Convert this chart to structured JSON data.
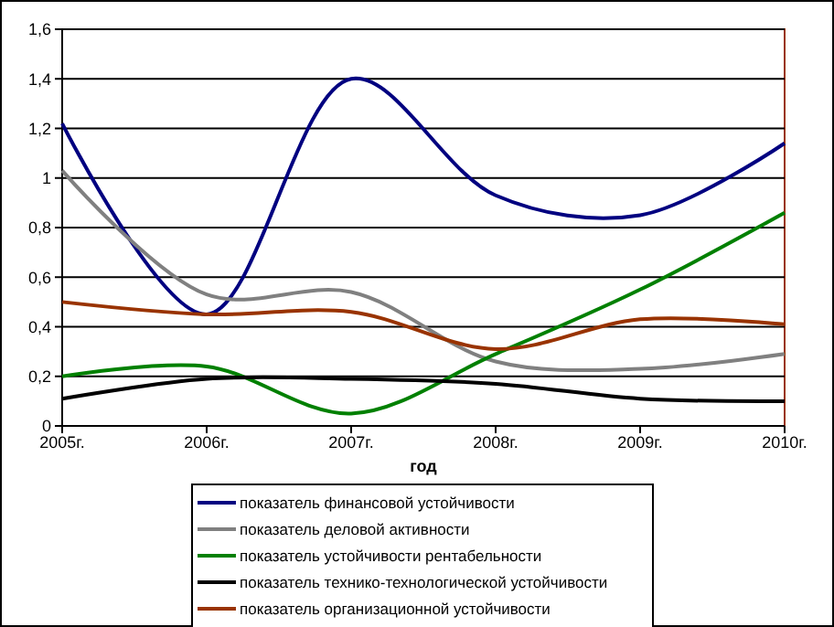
{
  "chart_data": {
    "type": "line",
    "xlabel": "год",
    "categories": [
      "2005г.",
      "2006г.",
      "2007г.",
      "2008г.",
      "2009г.",
      "2010г."
    ],
    "ylim": [
      0,
      1.6
    ],
    "yticks": [
      0,
      {
        "value": 0.2,
        "label": "0,2"
      },
      {
        "value": 0.4,
        "label": "0,4"
      },
      {
        "value": 0.6,
        "label": "0,6"
      },
      {
        "value": 0.8,
        "label": "0,8"
      },
      1,
      {
        "value": 1.2,
        "label": "1,2"
      },
      {
        "value": 1.4,
        "label": "1,4"
      },
      {
        "value": 1.6,
        "label": "1,6"
      }
    ],
    "grid": "y",
    "legend": "bottom",
    "marker": "none",
    "line_style": "solid",
    "series": [
      {
        "name": "показатель финансовой устойчивости",
        "color": "#000080",
        "values": [
          1.22,
          0.45,
          1.4,
          0.93,
          0.85,
          1.14
        ]
      },
      {
        "name": "показатель деловой активности",
        "color": "#808080",
        "values": [
          1.03,
          0.53,
          0.54,
          0.26,
          0.23,
          0.29
        ]
      },
      {
        "name": "показатель устойчивости рентабельности",
        "color": "#008000",
        "values": [
          0.2,
          0.24,
          0.05,
          0.29,
          0.55,
          0.86
        ]
      },
      {
        "name": "показатель технико-технологической устойчивости",
        "color": "#000000",
        "values": [
          0.11,
          0.19,
          0.19,
          0.17,
          0.11,
          0.1
        ]
      },
      {
        "name": "показатель организационной устойчивости",
        "color": "#993300",
        "values": [
          0.5,
          0.45,
          0.46,
          0.31,
          0.43,
          0.41
        ]
      }
    ]
  }
}
